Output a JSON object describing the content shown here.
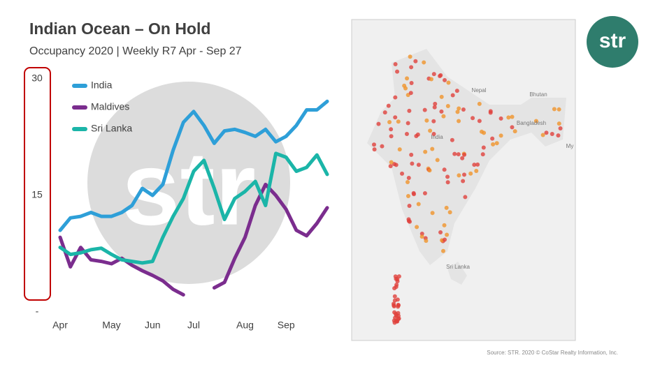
{
  "chart_data": {
    "type": "line",
    "title": "Indian Ocean – On Hold",
    "subtitle": "Occupancy 2020 | Weekly R7 Apr - Sep 27",
    "categories": [
      "Apr",
      null,
      null,
      null,
      null,
      "May",
      null,
      null,
      null,
      "Jun",
      null,
      null,
      null,
      "Jul",
      null,
      null,
      null,
      null,
      "Aug",
      null,
      null,
      null,
      "Sep",
      null,
      null,
      null,
      null
    ],
    "series": [
      {
        "name": "India",
        "color": "#2e9fd8",
        "values": [
          10.5,
          12.1,
          12.3,
          12.8,
          12.3,
          12.3,
          12.8,
          13.7,
          15.9,
          15.0,
          16.4,
          20.8,
          24.4,
          25.8,
          24.0,
          21.7,
          23.3,
          23.5,
          23.1,
          22.6,
          23.5,
          21.9,
          22.6,
          24.0,
          26.0,
          26.0,
          27.1
        ]
      },
      {
        "name": "Maldives",
        "color": "#7b2d8e",
        "values": [
          9.6,
          5.8,
          8.3,
          6.7,
          6.5,
          6.2,
          6.9,
          6.0,
          5.3,
          4.7,
          4.0,
          2.9,
          2.2,
          null,
          null,
          3.1,
          3.8,
          6.9,
          9.6,
          13.7,
          16.4,
          15.0,
          13.2,
          10.5,
          9.8,
          11.4,
          13.4
        ]
      },
      {
        "name": "Sri Lanka",
        "color": "#1bb5a8",
        "values": [
          8.3,
          7.4,
          7.6,
          8.0,
          8.2,
          7.4,
          6.7,
          6.5,
          6.3,
          6.5,
          9.6,
          12.3,
          14.6,
          18.1,
          19.5,
          15.9,
          11.9,
          14.6,
          15.5,
          16.8,
          13.7,
          20.4,
          19.9,
          18.1,
          18.6,
          20.2,
          17.7
        ]
      }
    ],
    "ylim": [
      0,
      30
    ],
    "yticks": [
      {
        "value": 0,
        "label": "-"
      },
      15,
      30
    ],
    "watermark": "str"
  },
  "logo": "str",
  "map": {
    "labels": [
      "Nepal",
      "Bhutan",
      "India",
      "Bangladesh",
      "My",
      "Sri Lanka"
    ]
  },
  "source": "Source: STR. 2020 © CoStar Realty Information, Inc."
}
